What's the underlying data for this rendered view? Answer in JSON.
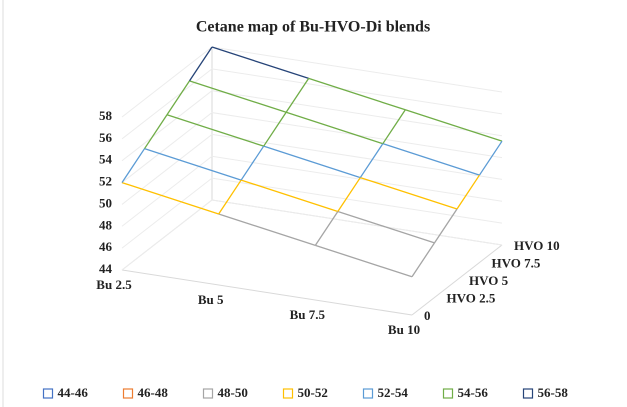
{
  "chart_data": {
    "type": "surface",
    "title": "Cetane map of Bu-HVO-Di blends",
    "categories": [
      "Bu 2.5",
      "Bu 5",
      "Bu 7.5",
      "Bu 10"
    ],
    "series": [
      {
        "name": "0",
        "values": [
          52,
          50.5,
          49,
          47.5
        ]
      },
      {
        "name": "HVO 2.5",
        "values": [
          53.5,
          52,
          50.5,
          49
        ]
      },
      {
        "name": "HVO 5",
        "values": [
          55,
          53.5,
          52,
          50.5
        ]
      },
      {
        "name": "HVO 7.5",
        "values": [
          56.5,
          55,
          53.5,
          52
        ]
      },
      {
        "name": "HVO 10",
        "values": [
          58,
          56.5,
          55,
          53.5
        ]
      }
    ],
    "zlim": [
      44,
      58
    ],
    "zticks": [
      44,
      46,
      48,
      50,
      52,
      54,
      56,
      58
    ],
    "bands": [
      {
        "name": "44-46",
        "color": "#4472c4"
      },
      {
        "name": "46-48",
        "color": "#ed7d31"
      },
      {
        "name": "48-50",
        "color": "#a5a5a5"
      },
      {
        "name": "50-52",
        "color": "#ffc000"
      },
      {
        "name": "52-54",
        "color": "#5b9bd5"
      },
      {
        "name": "54-56",
        "color": "#70ad47"
      },
      {
        "name": "56-58",
        "color": "#264478"
      }
    ]
  }
}
